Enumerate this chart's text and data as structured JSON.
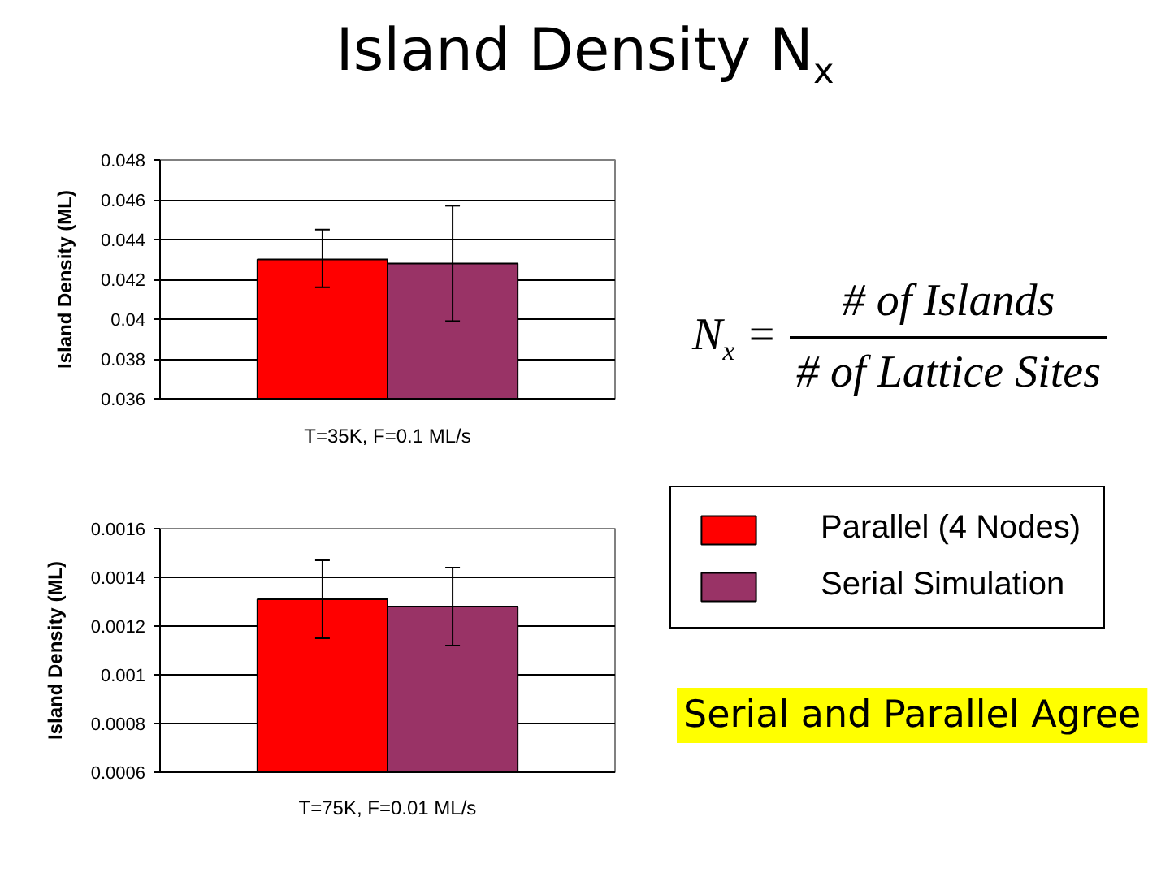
{
  "chart_data": [
    {
      "type": "bar",
      "title": "Island Density N$_{x}$",
      "ylabel": "Island Density (ML)",
      "categories": [
        "T=35K, F=0.1 ML/s"
      ],
      "series": [
        {
          "color": "#ff0000",
          "values": [
            0.043
          ],
          "errors": [
            [
              0.0416,
              0.0445
            ]
          ]
        },
        {
          "color": "#993366",
          "values": [
            0.0428
          ],
          "errors": [
            [
              0.0399,
              0.0457
            ]
          ]
        }
      ],
      "ylim": [
        0.036,
        0.048
      ],
      "yticks": [
        0.036,
        0.038,
        0.04,
        0.042,
        0.044,
        0.046,
        0.048
      ],
      "grid": "y",
      "annotations": [
        "N$_{x}$ =",
        "# of Islands",
        "# of Lattice Sites"
      ]
    },
    {
      "type": "bar",
      "ylabel": "Island Density (ML)",
      "categories": [
        "T=75K, F=0.01 ML/s"
      ],
      "series": [
        {
          "name": "Parallel (4 Nodes)",
          "color": "#ff0000",
          "values": [
            0.00131
          ],
          "errors": [
            [
              0.00115,
              0.00147
            ]
          ]
        },
        {
          "name": "Serial Simulation",
          "color": "#993366",
          "values": [
            0.00128
          ],
          "errors": [
            [
              0.00112,
              0.00144
            ]
          ]
        }
      ],
      "ylim": [
        0.0006,
        0.0016
      ],
      "yticks": [
        0.0006,
        0.0008,
        0.001,
        0.0012,
        0.0014,
        0.0016
      ],
      "grid": "y",
      "legend": "right",
      "annotations": [
        "Serial and Parallel Agree"
      ]
    }
  ]
}
